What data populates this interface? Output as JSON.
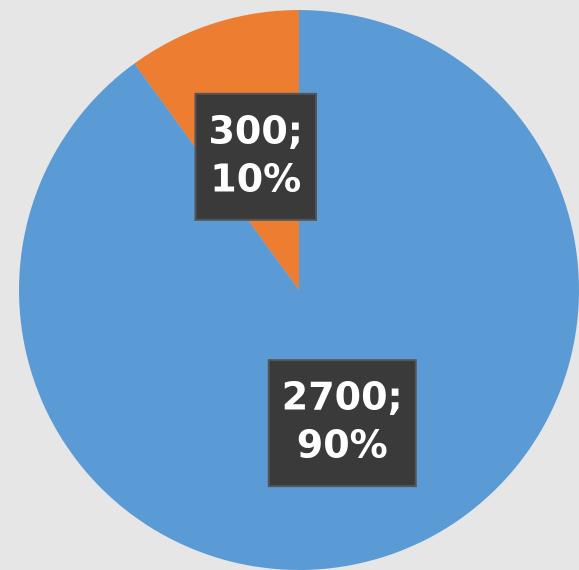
{
  "chart_data": {
    "type": "pie",
    "values": [
      2700,
      300
    ],
    "value_labels": [
      [
        "2700;",
        "90%"
      ],
      [
        "300;",
        "10%"
      ]
    ],
    "colors": [
      "#5b9bd5",
      "#ed7d31"
    ]
  }
}
